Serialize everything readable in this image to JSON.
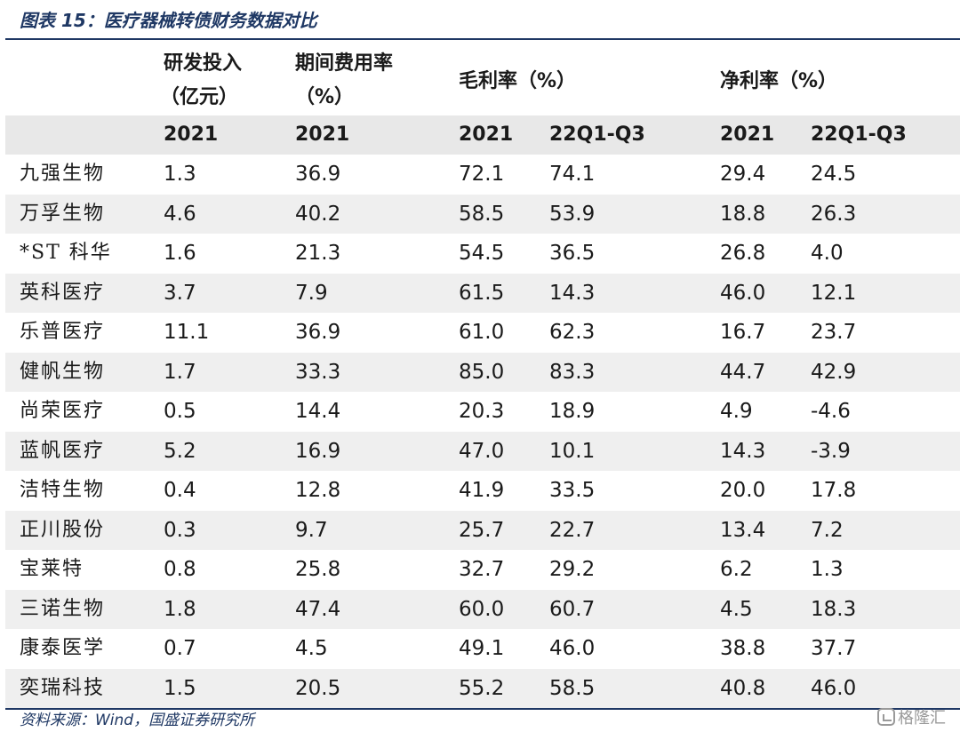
{
  "figure": {
    "title": "图表 15：医疗器械转债财务数据对比",
    "source": "资料来源：Wind，国盛证券研究所",
    "watermark": "格隆汇"
  },
  "header": {
    "col1_line1": "研发投入",
    "col1_line2": "（亿元）",
    "col2_line1": "期间费用率",
    "col2_line2": "（%）",
    "col3": "毛利率（%）",
    "col4": "净利率（%）",
    "sub": [
      "2021",
      "2021",
      "2021",
      "22Q1-Q3",
      "2021",
      "22Q1-Q3"
    ]
  },
  "colors": {
    "title": "#1f3864",
    "rule": "#1f3864",
    "shade": "#efefef",
    "subheader_bg": "#e8e8e8"
  },
  "rows": [
    {
      "name": "九强生物",
      "rd": "1.3",
      "exp": "36.9",
      "gm21": "72.1",
      "gm22": "74.1",
      "nm21": "29.4",
      "nm22": "24.5"
    },
    {
      "name": "万孚生物",
      "rd": "4.6",
      "exp": "40.2",
      "gm21": "58.5",
      "gm22": "53.9",
      "nm21": "18.8",
      "nm22": "26.3"
    },
    {
      "name": "*ST 科华",
      "rd": "1.6",
      "exp": "21.3",
      "gm21": "54.5",
      "gm22": "36.5",
      "nm21": "26.8",
      "nm22": "4.0"
    },
    {
      "name": "英科医疗",
      "rd": "3.7",
      "exp": "7.9",
      "gm21": "61.5",
      "gm22": "14.3",
      "nm21": "46.0",
      "nm22": "12.1"
    },
    {
      "name": "乐普医疗",
      "rd": "11.1",
      "exp": "36.9",
      "gm21": "61.0",
      "gm22": "62.3",
      "nm21": "16.7",
      "nm22": "23.7"
    },
    {
      "name": "健帆生物",
      "rd": "1.7",
      "exp": "33.3",
      "gm21": "85.0",
      "gm22": "83.3",
      "nm21": "44.7",
      "nm22": "42.9"
    },
    {
      "name": "尚荣医疗",
      "rd": "0.5",
      "exp": "14.4",
      "gm21": "20.3",
      "gm22": "18.9",
      "nm21": "4.9",
      "nm22": "-4.6"
    },
    {
      "name": "蓝帆医疗",
      "rd": "5.2",
      "exp": "16.9",
      "gm21": "47.0",
      "gm22": "10.1",
      "nm21": "14.3",
      "nm22": "-3.9"
    },
    {
      "name": "洁特生物",
      "rd": "0.4",
      "exp": "12.8",
      "gm21": "41.9",
      "gm22": "33.5",
      "nm21": "20.0",
      "nm22": "17.8"
    },
    {
      "name": "正川股份",
      "rd": "0.3",
      "exp": "9.7",
      "gm21": "25.7",
      "gm22": "22.7",
      "nm21": "13.4",
      "nm22": "7.2"
    },
    {
      "name": "宝莱特",
      "rd": "0.8",
      "exp": "25.8",
      "gm21": "32.7",
      "gm22": "29.2",
      "nm21": "6.2",
      "nm22": "1.3"
    },
    {
      "name": "三诺生物",
      "rd": "1.8",
      "exp": "47.4",
      "gm21": "60.0",
      "gm22": "60.7",
      "nm21": "4.5",
      "nm22": "18.3"
    },
    {
      "name": "康泰医学",
      "rd": "0.7",
      "exp": "4.5",
      "gm21": "49.1",
      "gm22": "46.0",
      "nm21": "38.8",
      "nm22": "37.7"
    },
    {
      "name": "奕瑞科技",
      "rd": "1.5",
      "exp": "20.5",
      "gm21": "55.2",
      "gm22": "58.5",
      "nm21": "40.8",
      "nm22": "46.0"
    }
  ]
}
